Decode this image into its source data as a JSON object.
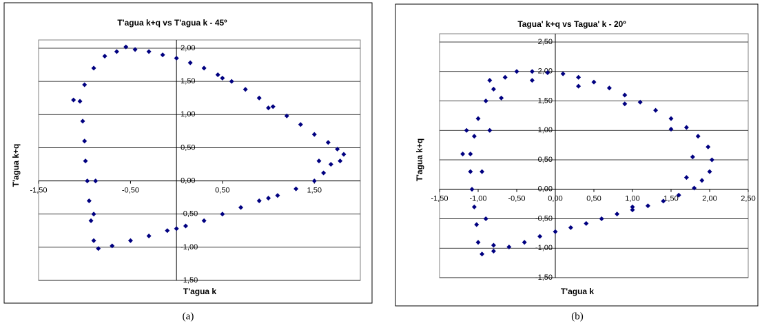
{
  "chart_data": [
    {
      "type": "scatter",
      "title": "T'agua k+q vs T'agua k - 45º",
      "x_label": "T'agua k",
      "y_label": "T'agua k+q",
      "color": "#000080",
      "grid": true,
      "ytick_side": "right",
      "xlim": [
        -1.5,
        2.0
      ],
      "ylim": [
        -1.5,
        2.0
      ],
      "xticks": [
        {
          "value": -1.5,
          "label": "-1,50"
        },
        {
          "value": -0.5,
          "label": "-0,50"
        },
        {
          "value": 0.5,
          "label": "0,50"
        },
        {
          "value": 1.5,
          "label": "1,50"
        }
      ],
      "yticks": [
        {
          "value": -1.5,
          "label": "-1,50"
        },
        {
          "value": -1.0,
          "label": "-1,00"
        },
        {
          "value": -0.5,
          "label": "-0,50"
        },
        {
          "value": 0,
          "label": "0,00"
        },
        {
          "value": 0.5,
          "label": "0,50"
        },
        {
          "value": 1.0,
          "label": "1,00"
        },
        {
          "value": 1.5,
          "label": "1,50"
        },
        {
          "value": 2.0,
          "label": "2,00"
        }
      ],
      "x": [
        -0.55,
        -0.45,
        -0.3,
        -0.15,
        0,
        0.15,
        0.3,
        0.45,
        0.6,
        0.75,
        0.9,
        1.05,
        1.2,
        1.35,
        1.5,
        1.65,
        1.75,
        1.82,
        1.78,
        1.68,
        1.6,
        1.5,
        1.3,
        1.1,
        0.9,
        0.7,
        0.5,
        0.3,
        0.1,
        -0.1,
        -0.3,
        -0.5,
        -0.7,
        -0.85,
        -0.9,
        -0.93,
        -0.95,
        -0.97,
        -0.99,
        -1.0,
        -1.02,
        -1.05,
        -1.12,
        -1.0,
        -0.9,
        -0.78,
        -0.65,
        0.5,
        1.0,
        -0.88,
        -0.9,
        0,
        1.0,
        1.55
      ],
      "y": [
        2.02,
        1.98,
        1.95,
        1.9,
        1.85,
        1.78,
        1.7,
        1.6,
        1.5,
        1.38,
        1.25,
        1.12,
        0.98,
        0.85,
        0.7,
        0.58,
        0.48,
        0.4,
        0.3,
        0.25,
        0.12,
        0,
        -0.12,
        -0.22,
        -0.3,
        -0.4,
        -0.5,
        -0.6,
        -0.68,
        -0.75,
        -0.83,
        -0.9,
        -0.98,
        -1.02,
        -0.9,
        -0.6,
        -0.3,
        0,
        0.3,
        0.6,
        0.9,
        1.2,
        1.22,
        1.45,
        1.7,
        1.88,
        1.95,
        1.55,
        1.1,
        0,
        -0.5,
        -0.72,
        -0.26,
        0.3
      ]
    },
    {
      "type": "scatter",
      "title": "Tagua'  k+q  vs Tagua' k - 20º",
      "x_label": "T'agua k",
      "y_label": "T'agua k+q",
      "color": "#000080",
      "grid": true,
      "ytick_side": "left",
      "xlim": [
        -1.5,
        2.5
      ],
      "ylim": [
        -1.5,
        2.5
      ],
      "xticks": [
        {
          "value": -1.5,
          "label": "-1,50"
        },
        {
          "value": -1.0,
          "label": "-1,00"
        },
        {
          "value": -0.5,
          "label": "-0,50"
        },
        {
          "value": 0,
          "label": "0,00"
        },
        {
          "value": 0.5,
          "label": "0,50"
        },
        {
          "value": 1.0,
          "label": "1,00"
        },
        {
          "value": 1.5,
          "label": "1,50"
        },
        {
          "value": 2.0,
          "label": "2,00"
        },
        {
          "value": 2.5,
          "label": "2,50"
        }
      ],
      "yticks": [
        {
          "value": -1.5,
          "label": "-1,50"
        },
        {
          "value": -1.0,
          "label": "-1,00"
        },
        {
          "value": -0.5,
          "label": "-0,50"
        },
        {
          "value": 0,
          "label": "0,00"
        },
        {
          "value": 0.5,
          "label": "0,50"
        },
        {
          "value": 1.0,
          "label": "1,00"
        },
        {
          "value": 1.5,
          "label": "1,50"
        },
        {
          "value": 2.0,
          "label": "2,00"
        },
        {
          "value": 2.5,
          "label": "2,50"
        }
      ],
      "x": [
        -0.5,
        -0.3,
        -0.1,
        0.1,
        0.3,
        0.5,
        0.7,
        0.9,
        1.1,
        1.3,
        1.5,
        1.7,
        1.85,
        1.98,
        2.03,
        2.0,
        1.9,
        1.8,
        1.6,
        1.4,
        1.2,
        1.0,
        0.8,
        0.6,
        0.4,
        0.2,
        0,
        -0.2,
        -0.4,
        -0.6,
        -0.8,
        -0.95,
        -1.0,
        -1.02,
        -1.05,
        -1.08,
        -1.1,
        -1.1,
        -1.05,
        -1.0,
        -0.9,
        -0.8,
        -0.65,
        -0.3,
        0.3,
        0.9,
        1.5,
        1.78,
        1.7,
        1.0,
        -0.8,
        -0.9,
        -0.95,
        -0.85,
        -0.7,
        -1.2,
        -1.15,
        -0.85
      ],
      "y": [
        2.0,
        2.0,
        1.98,
        1.96,
        1.9,
        1.82,
        1.72,
        1.6,
        1.48,
        1.34,
        1.2,
        1.05,
        0.9,
        0.72,
        0.5,
        0.3,
        0.15,
        0.02,
        -0.1,
        -0.2,
        -0.28,
        -0.35,
        -0.42,
        -0.5,
        -0.58,
        -0.65,
        -0.72,
        -0.8,
        -0.9,
        -0.98,
        -1.05,
        -1.1,
        -0.9,
        -0.6,
        -0.3,
        0,
        0.3,
        0.6,
        0.9,
        1.2,
        1.5,
        1.7,
        1.9,
        1.85,
        1.75,
        1.45,
        1.02,
        0.55,
        0.2,
        -0.3,
        -0.95,
        -0.5,
        0.3,
        1.0,
        1.55,
        0.6,
        1.0,
        1.85
      ]
    }
  ],
  "captions": [
    "(a)",
    "(b)"
  ]
}
